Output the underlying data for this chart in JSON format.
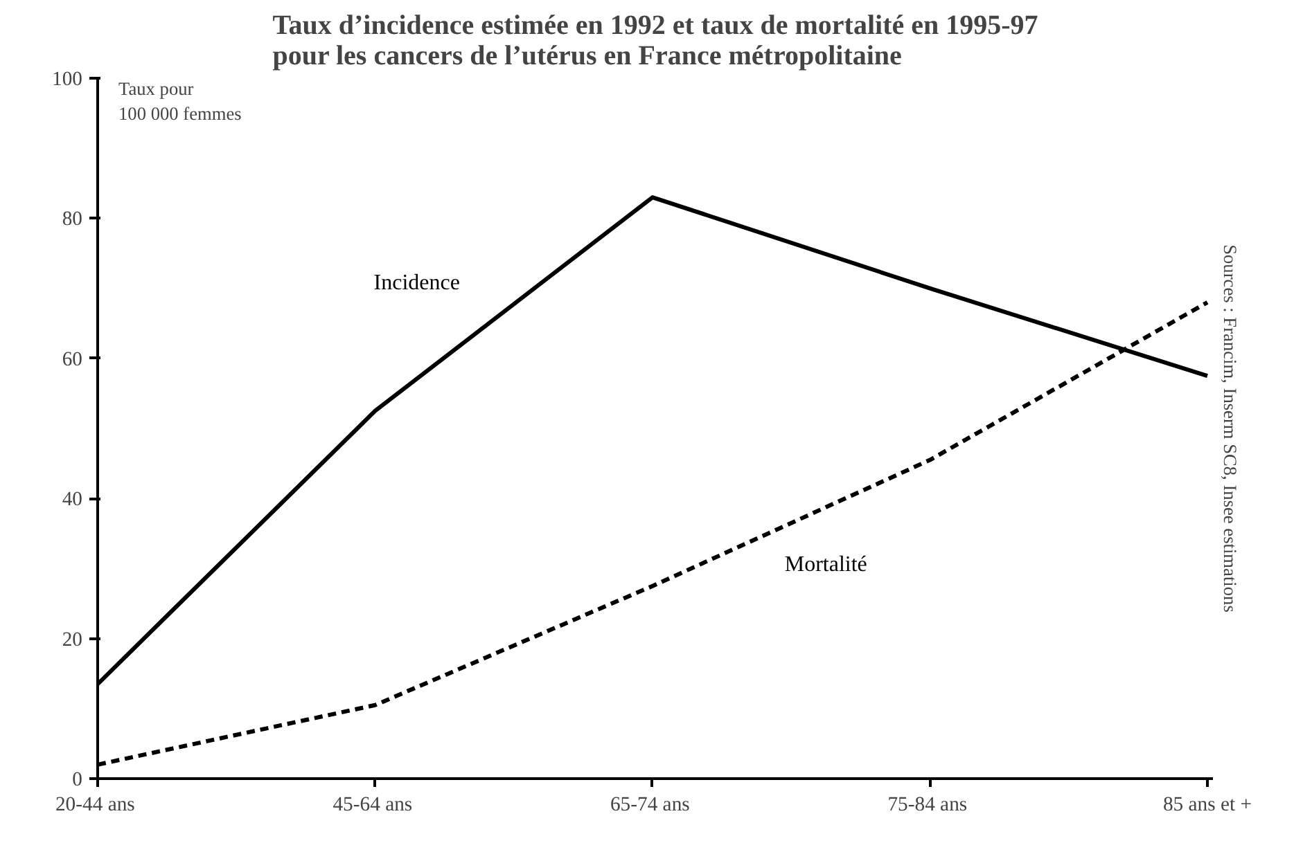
{
  "chart_data": {
    "type": "line",
    "title": "Taux d’incidence estimée en 1992 et taux de mortalité en 1995-97\npour les cancers de l’utérus en France métropolitaine",
    "ylabel": "Taux pour\n100 000 femmes",
    "categories": [
      "20-44  ans",
      "45-64  ans",
      "65-74  ans",
      "75-84  ans",
      "85 ans et +"
    ],
    "series": [
      {
        "name": "Incidence",
        "color": "#000000",
        "line_style": "solid",
        "values": [
          13.5,
          52.5,
          83,
          70,
          57.5
        ]
      },
      {
        "name": "Mortalité",
        "color": "#000000",
        "line_style": "dashed",
        "values": [
          2,
          10.5,
          27.5,
          45.5,
          68
        ]
      }
    ],
    "ylim": [
      0,
      100
    ],
    "yticks": [
      0,
      20,
      40,
      60,
      80,
      100
    ],
    "grid": false,
    "marker": "none",
    "annotations": [
      "Sources : Francim, Inserm SC8, Insee estimations"
    ]
  }
}
